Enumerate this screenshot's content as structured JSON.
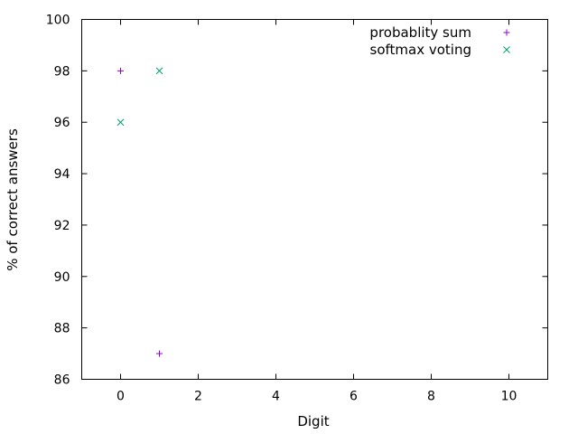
{
  "chart_data": {
    "type": "scatter",
    "title": "",
    "xlabel": "Digit",
    "ylabel": "% of correct answers",
    "xlim": [
      -1,
      11
    ],
    "ylim": [
      86,
      100
    ],
    "xticks": [
      0,
      2,
      4,
      6,
      8,
      10
    ],
    "yticks": [
      86,
      88,
      90,
      92,
      94,
      96,
      98,
      100
    ],
    "grid": false,
    "legend": {
      "placement": "top-right"
    },
    "series": [
      {
        "name": "probablity sum",
        "marker": "plus",
        "color": "#9400d3",
        "x": [
          0,
          1
        ],
        "y": [
          98,
          87
        ]
      },
      {
        "name": "softmax voting",
        "marker": "cross",
        "color": "#009e73",
        "x": [
          0,
          1
        ],
        "y": [
          96,
          98
        ]
      }
    ]
  }
}
